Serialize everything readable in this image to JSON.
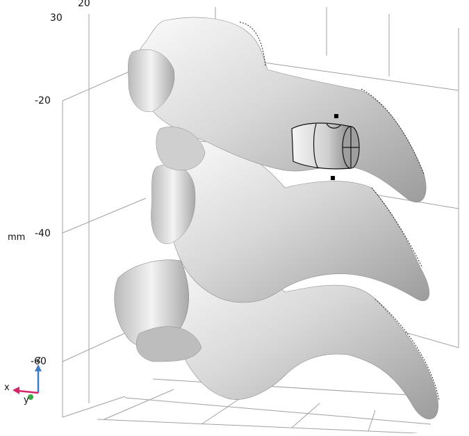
{
  "axis": {
    "unit": "mm",
    "ticks": [
      "20",
      "30",
      "-20",
      "-40",
      "-60"
    ]
  },
  "triad": {
    "x": "x",
    "y": "y",
    "z": "z"
  },
  "colors": {
    "bone_light": "#f2f2f2",
    "bone_mid": "#c9c9c9",
    "bone_dark": "#8f8f8f",
    "grid": "#9a9a9a",
    "x_axis": "#d3266a",
    "y_axis": "#3aa844",
    "z_axis": "#3b7cc4"
  }
}
